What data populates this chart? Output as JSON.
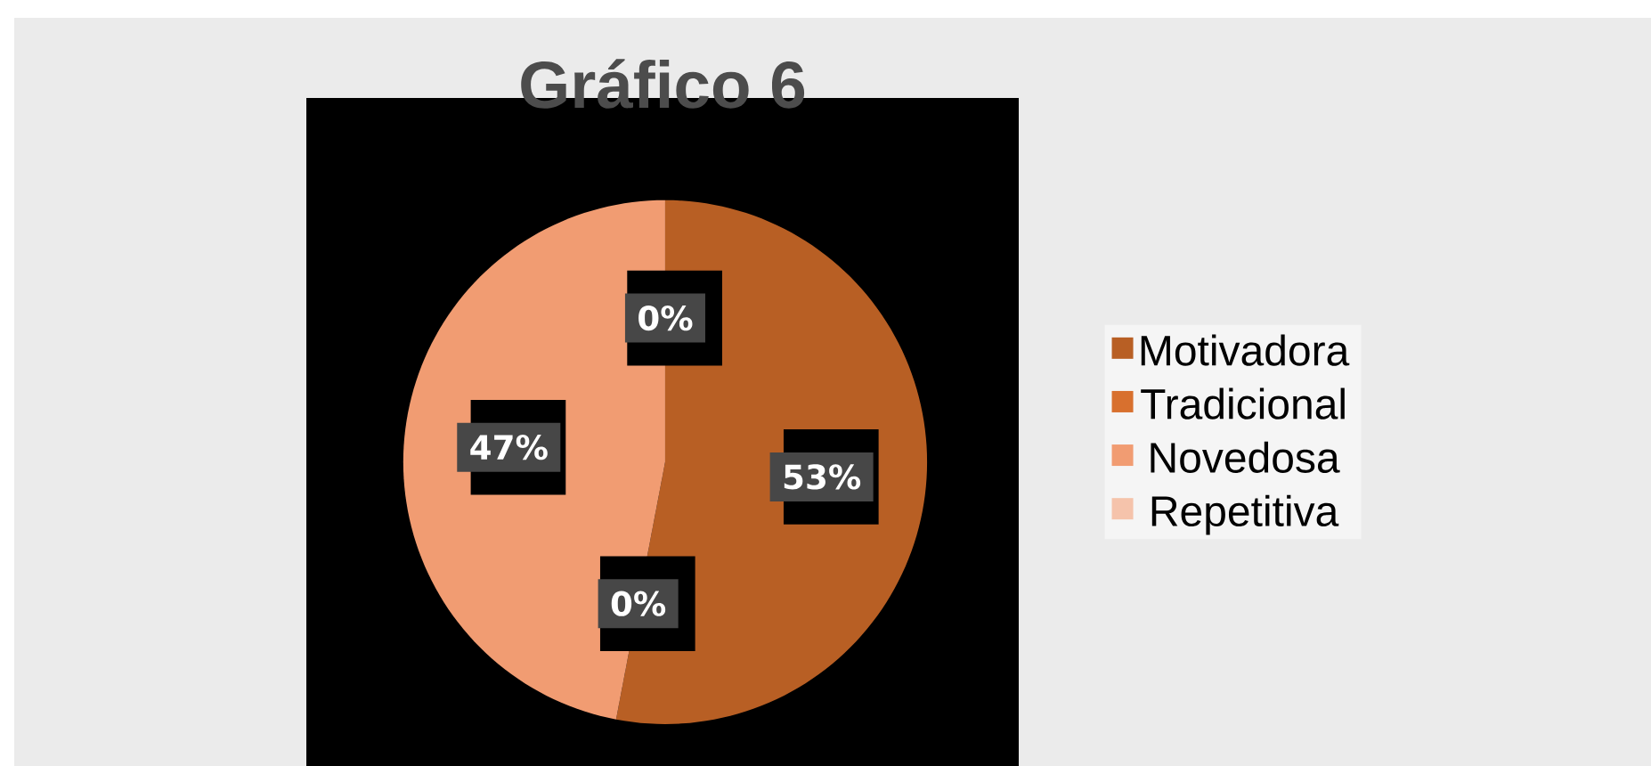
{
  "chart_data": {
    "type": "pie",
    "title": "Gráfico 6",
    "categories": [
      "Motivadora",
      "Tradicional",
      "Novedosa",
      "Repetitiva"
    ],
    "values": [
      53,
      0,
      47,
      0
    ],
    "colors": [
      "#b85f24",
      "#d8702e",
      "#f19c72",
      "#f5c3ab"
    ],
    "value_labels": [
      "53%",
      "0%",
      "47%",
      "0%"
    ],
    "legend": "right"
  }
}
